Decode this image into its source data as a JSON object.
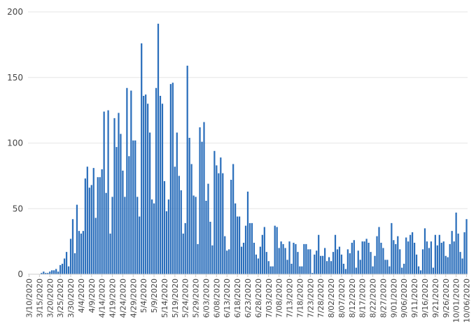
{
  "chart_data": {
    "type": "bar",
    "title": "",
    "xlabel": "",
    "ylabel": "",
    "ylim": [
      0,
      200
    ],
    "yticks": [
      0,
      50,
      100,
      150,
      200
    ],
    "grid": true,
    "bar_color": "#2a6ebb",
    "start_date": "3/10/2020",
    "x_tick_labels": [
      "3/10/2020",
      "3/15/2020",
      "3/20/2020",
      "3/25/2020",
      "3/30/2020",
      "4/4/2020",
      "4/9/2020",
      "4/14/2020",
      "4/19/2020",
      "4/24/2020",
      "4/29/2020",
      "5/4/2020",
      "5/9/2020",
      "5/14/2020",
      "5/19/2020",
      "5/24/2020",
      "5/29/2020",
      "6/03/2020",
      "6/08/2020",
      "6/13/2020",
      "6/18/2020",
      "6/23/2020",
      "6/28/2020",
      "7/03/2020",
      "7/08/2020",
      "7/13/2020",
      "7/18/2020",
      "7/23/2020",
      "7/28/2020",
      "8/02/2020",
      "8/07/2020",
      "8/12/2020",
      "8/17/2020",
      "8/22/2020",
      "8/27/2020",
      "9/01/2020",
      "9/06/2020",
      "9/11/2020",
      "9/16/2020",
      "9/21/2020",
      "9/26/2020",
      "10/01/2020",
      "10/06/2020"
    ],
    "values": [
      0,
      0,
      0,
      0,
      0,
      0,
      1,
      2,
      1,
      1,
      2,
      3,
      3,
      4,
      2,
      7,
      8,
      12,
      17,
      6,
      27,
      42,
      16,
      53,
      33,
      31,
      33,
      73,
      82,
      66,
      68,
      81,
      43,
      74,
      74,
      80,
      124,
      62,
      125,
      31,
      59,
      119,
      97,
      123,
      107,
      79,
      59,
      142,
      90,
      140,
      102,
      102,
      59,
      44,
      176,
      136,
      137,
      130,
      108,
      57,
      54,
      142,
      191,
      136,
      130,
      71,
      48,
      57,
      145,
      146,
      82,
      108,
      75,
      64,
      31,
      39,
      159,
      104,
      84,
      60,
      59,
      23,
      112,
      101,
      116,
      56,
      69,
      40,
      22,
      94,
      83,
      77,
      89,
      77,
      29,
      18,
      19,
      72,
      84,
      54,
      44,
      44,
      21,
      24,
      37,
      63,
      39,
      39,
      24,
      15,
      12,
      21,
      30,
      36,
      17,
      10,
      6,
      6,
      37,
      36,
      20,
      25,
      23,
      20,
      11,
      25,
      8,
      24,
      23,
      17,
      6,
      6,
      23,
      23,
      19,
      19,
      1,
      15,
      18,
      30,
      14,
      14,
      20,
      10,
      13,
      10,
      17,
      30,
      19,
      21,
      15,
      8,
      4,
      19,
      16,
      24,
      26,
      5,
      18,
      11,
      25,
      25,
      27,
      24,
      17,
      6,
      14,
      29,
      36,
      24,
      20,
      11,
      11,
      6,
      39,
      26,
      23,
      29,
      19,
      5,
      8,
      28,
      25,
      30,
      32,
      24,
      15,
      6,
      3,
      19,
      35,
      25,
      20,
      25,
      5,
      30,
      22,
      30,
      24,
      25,
      14,
      13,
      23,
      33,
      25,
      47,
      31,
      17,
      12,
      32,
      42
    ]
  }
}
